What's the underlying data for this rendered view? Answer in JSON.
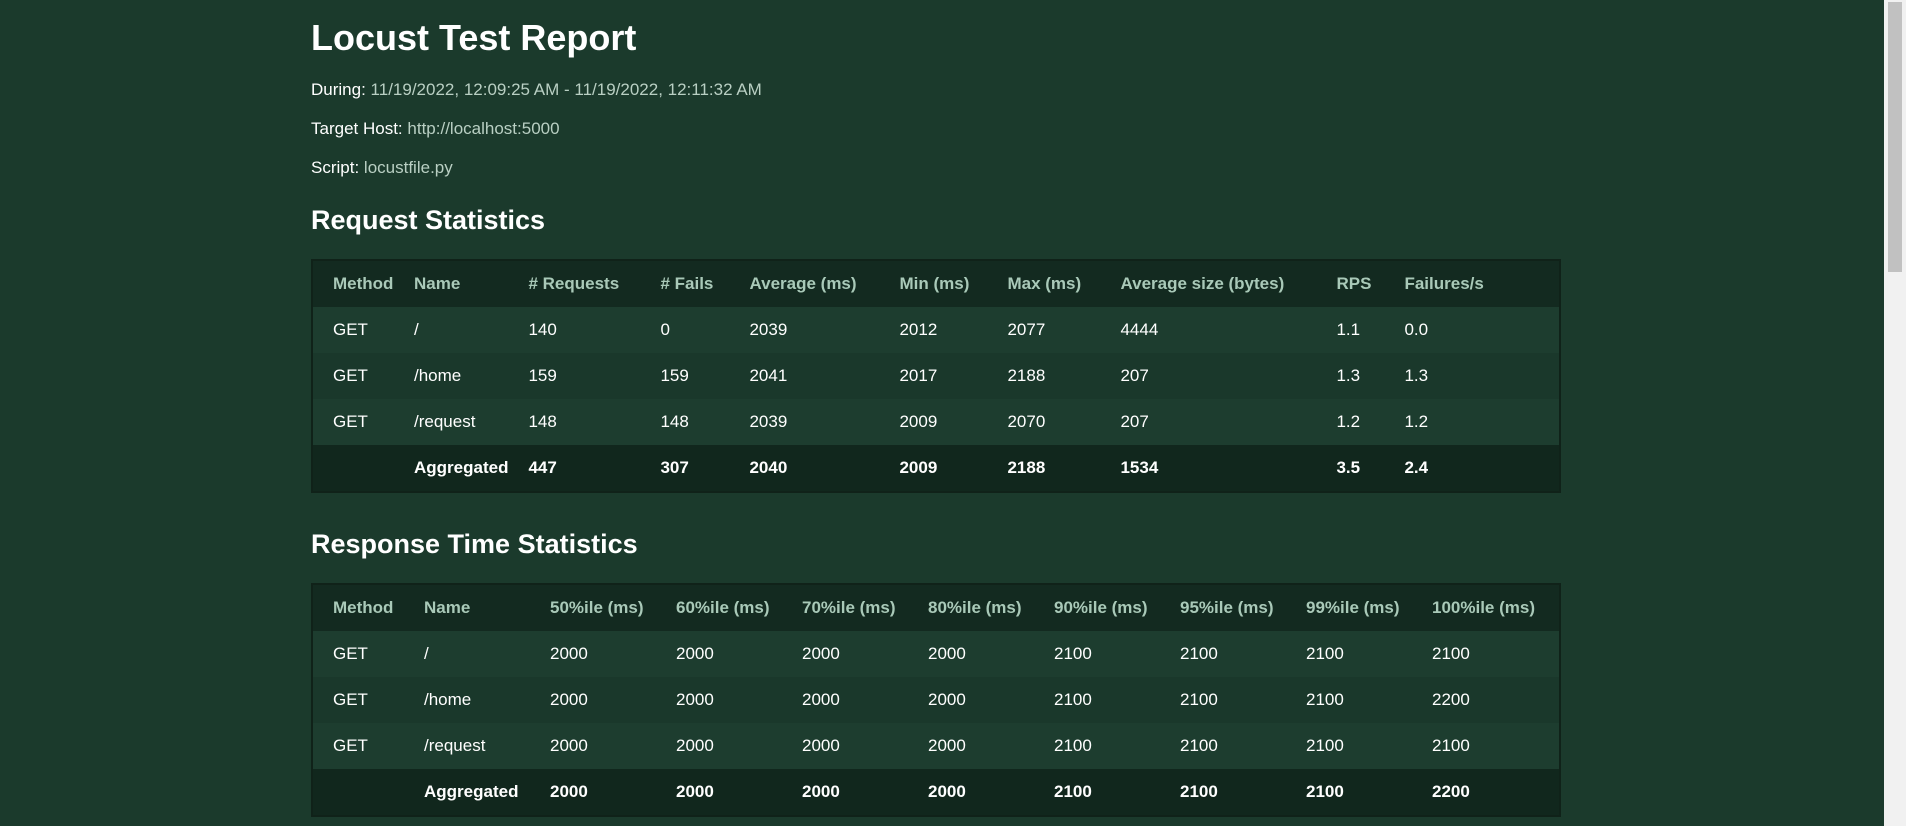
{
  "report": {
    "title": "Locust Test Report",
    "during_label": "During:",
    "during_value": "11/19/2022, 12:09:25 AM - 11/19/2022, 12:11:32 AM",
    "host_label": "Target Host:",
    "host_value": "http://localhost:5000",
    "script_label": "Script:",
    "script_value": "locustfile.py"
  },
  "request_stats": {
    "heading": "Request Statistics",
    "columns": [
      "Method",
      "Name",
      "# Requests",
      "# Fails",
      "Average (ms)",
      "Min (ms)",
      "Max (ms)",
      "Average size (bytes)",
      "RPS",
      "Failures/s"
    ],
    "rows": [
      [
        "GET",
        "/",
        "140",
        "0",
        "2039",
        "2012",
        "2077",
        "4444",
        "1.1",
        "0.0"
      ],
      [
        "GET",
        "/home",
        "159",
        "159",
        "2041",
        "2017",
        "2188",
        "207",
        "1.3",
        "1.3"
      ],
      [
        "GET",
        "/request",
        "148",
        "148",
        "2039",
        "2009",
        "2070",
        "207",
        "1.2",
        "1.2"
      ]
    ],
    "aggregated": [
      "",
      "Aggregated",
      "447",
      "307",
      "2040",
      "2009",
      "2188",
      "1534",
      "3.5",
      "2.4"
    ]
  },
  "response_stats": {
    "heading": "Response Time Statistics",
    "columns": [
      "Method",
      "Name",
      "50%ile (ms)",
      "60%ile (ms)",
      "70%ile (ms)",
      "80%ile (ms)",
      "90%ile (ms)",
      "95%ile (ms)",
      "99%ile (ms)",
      "100%ile (ms)"
    ],
    "rows": [
      [
        "GET",
        "/",
        "2000",
        "2000",
        "2000",
        "2000",
        "2100",
        "2100",
        "2100",
        "2100"
      ],
      [
        "GET",
        "/home",
        "2000",
        "2000",
        "2000",
        "2000",
        "2100",
        "2100",
        "2100",
        "2200"
      ],
      [
        "GET",
        "/request",
        "2000",
        "2000",
        "2000",
        "2000",
        "2100",
        "2100",
        "2100",
        "2100"
      ]
    ],
    "aggregated": [
      "",
      "Aggregated",
      "2000",
      "2000",
      "2000",
      "2000",
      "2100",
      "2100",
      "2100",
      "2200"
    ]
  },
  "colors": {
    "background": "#1b3a2c",
    "header_text": "#a9c9b8",
    "value_text": "#b9cfc3"
  }
}
